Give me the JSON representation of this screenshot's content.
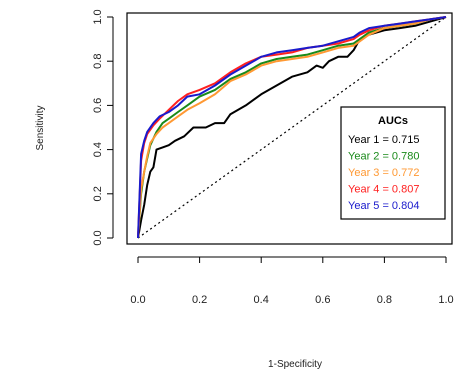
{
  "chart_data": {
    "type": "line",
    "xlabel": "1-Specificity",
    "ylabel": "Sensitivity",
    "xlim": [
      0,
      1
    ],
    "ylim": [
      0,
      1
    ],
    "xticks": [
      "0.0",
      "0.2",
      "0.4",
      "0.6",
      "0.8",
      "1.0"
    ],
    "yticks": [
      "0.0",
      "0.2",
      "0.4",
      "0.6",
      "0.8",
      "1.0"
    ],
    "grid": false,
    "legend": {
      "title": "AUCs",
      "position": "right",
      "entries": [
        "Year 1 = 0.715",
        "Year 2 = 0.780",
        "Year 3 = 0.772",
        "Year 4 = 0.807",
        "Year 5 = 0.804"
      ]
    },
    "reference_line": {
      "style": "dotted",
      "from": [
        0,
        0
      ],
      "to": [
        1,
        1
      ]
    },
    "series": [
      {
        "color": "#000000",
        "x": [
          0.0,
          0.01,
          0.02,
          0.03,
          0.04,
          0.05,
          0.06,
          0.08,
          0.1,
          0.12,
          0.15,
          0.18,
          0.22,
          0.25,
          0.28,
          0.3,
          0.35,
          0.4,
          0.45,
          0.5,
          0.55,
          0.58,
          0.6,
          0.62,
          0.65,
          0.68,
          0.7,
          0.72,
          0.75,
          0.8,
          0.85,
          0.9,
          0.95,
          1.0
        ],
        "y": [
          0.0,
          0.08,
          0.15,
          0.24,
          0.3,
          0.32,
          0.4,
          0.41,
          0.42,
          0.44,
          0.46,
          0.5,
          0.5,
          0.52,
          0.52,
          0.56,
          0.6,
          0.65,
          0.69,
          0.73,
          0.75,
          0.78,
          0.77,
          0.8,
          0.82,
          0.82,
          0.85,
          0.9,
          0.92,
          0.94,
          0.95,
          0.96,
          0.98,
          1.0
        ]
      },
      {
        "color": "#1a8a1a",
        "x": [
          0.0,
          0.01,
          0.02,
          0.03,
          0.04,
          0.06,
          0.08,
          0.1,
          0.13,
          0.16,
          0.2,
          0.25,
          0.3,
          0.35,
          0.4,
          0.45,
          0.5,
          0.55,
          0.6,
          0.65,
          0.7,
          0.72,
          0.75,
          0.8,
          0.85,
          0.9,
          0.95,
          1.0
        ],
        "y": [
          0.0,
          0.2,
          0.3,
          0.36,
          0.42,
          0.48,
          0.52,
          0.54,
          0.57,
          0.6,
          0.64,
          0.67,
          0.72,
          0.75,
          0.79,
          0.81,
          0.82,
          0.83,
          0.85,
          0.87,
          0.88,
          0.9,
          0.93,
          0.95,
          0.96,
          0.97,
          0.99,
          1.0
        ]
      },
      {
        "color": "#ff9933",
        "x": [
          0.0,
          0.01,
          0.02,
          0.03,
          0.04,
          0.06,
          0.08,
          0.1,
          0.13,
          0.16,
          0.2,
          0.25,
          0.3,
          0.35,
          0.4,
          0.45,
          0.5,
          0.55,
          0.6,
          0.65,
          0.7,
          0.72,
          0.75,
          0.8,
          0.85,
          0.9,
          0.95,
          1.0
        ],
        "y": [
          0.0,
          0.22,
          0.3,
          0.37,
          0.43,
          0.47,
          0.5,
          0.52,
          0.55,
          0.58,
          0.61,
          0.65,
          0.71,
          0.74,
          0.78,
          0.8,
          0.81,
          0.82,
          0.84,
          0.86,
          0.87,
          0.89,
          0.92,
          0.95,
          0.96,
          0.97,
          0.99,
          1.0
        ]
      },
      {
        "color": "#ff2020",
        "x": [
          0.0,
          0.01,
          0.02,
          0.03,
          0.05,
          0.07,
          0.1,
          0.13,
          0.16,
          0.2,
          0.25,
          0.3,
          0.35,
          0.4,
          0.45,
          0.5,
          0.55,
          0.6,
          0.65,
          0.7,
          0.72,
          0.75,
          0.8,
          0.85,
          0.9,
          0.95,
          1.0
        ],
        "y": [
          0.0,
          0.35,
          0.43,
          0.47,
          0.51,
          0.54,
          0.58,
          0.62,
          0.65,
          0.67,
          0.7,
          0.75,
          0.79,
          0.82,
          0.83,
          0.84,
          0.86,
          0.87,
          0.88,
          0.9,
          0.92,
          0.94,
          0.96,
          0.97,
          0.98,
          0.99,
          1.0
        ]
      },
      {
        "color": "#1a1acc",
        "x": [
          0.0,
          0.01,
          0.02,
          0.03,
          0.05,
          0.07,
          0.1,
          0.13,
          0.16,
          0.2,
          0.25,
          0.3,
          0.35,
          0.4,
          0.45,
          0.5,
          0.55,
          0.6,
          0.65,
          0.7,
          0.72,
          0.75,
          0.8,
          0.85,
          0.9,
          0.95,
          1.0
        ],
        "y": [
          0.0,
          0.38,
          0.44,
          0.48,
          0.52,
          0.55,
          0.57,
          0.6,
          0.64,
          0.65,
          0.69,
          0.74,
          0.78,
          0.82,
          0.84,
          0.85,
          0.86,
          0.87,
          0.89,
          0.91,
          0.93,
          0.95,
          0.96,
          0.97,
          0.98,
          0.99,
          1.0
        ]
      }
    ]
  }
}
